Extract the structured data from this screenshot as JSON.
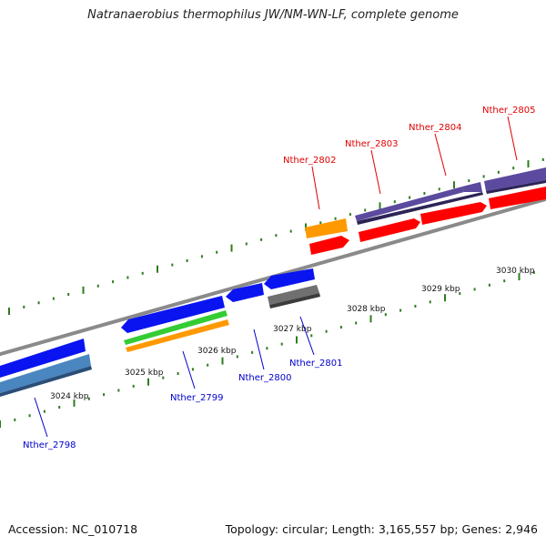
{
  "title": "Natranaerobius thermophilus JW/NM-WN-LF, complete genome",
  "accession": "Accession: NC_010718",
  "summary": "Topology: circular; Length: 3,165,557 bp; Genes: 2,946",
  "colors": {
    "backbone": "#8a8a8a",
    "tick": "#2e7d1e",
    "forward_label": "#e00000",
    "reverse_label": "#0000cc",
    "purple": "#5b4a9e",
    "red": "#ff0000",
    "orange": "#ff9900",
    "blue": "#0a14f0",
    "steelblue": "#4a86c0",
    "green": "#33cc33",
    "gray": "#707070"
  },
  "scale_labels": [
    "3024 kbp",
    "3025 kbp",
    "3026 kbp",
    "3027 kbp",
    "3028 kbp",
    "3029 kbp",
    "3030 kbp"
  ],
  "gene_labels": {
    "forward": [
      "Nther_2802",
      "Nther_2803",
      "Nther_2804",
      "Nther_2805"
    ],
    "reverse": [
      "Nther_2798",
      "Nther_2799",
      "Nther_2800",
      "Nther_2801"
    ]
  }
}
